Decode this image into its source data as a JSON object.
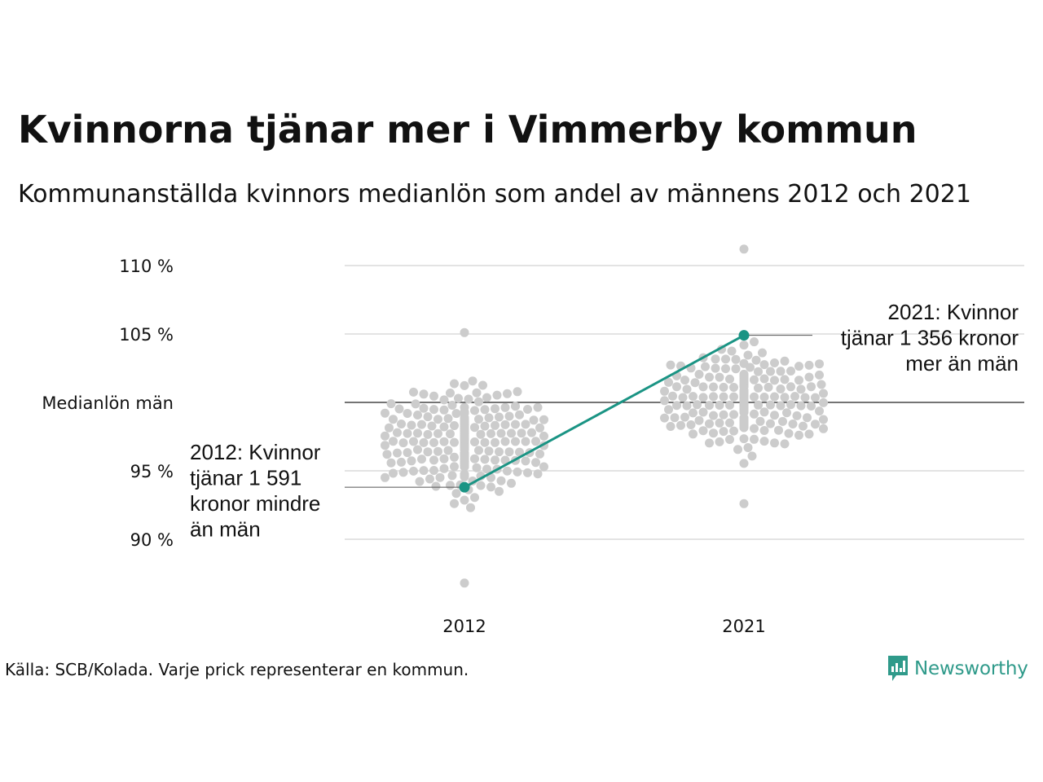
{
  "title": "Kvinnorna tjänar mer i Vimmerby kommun",
  "subtitle": "Kommunanställda kvinnors medianlön som andel av männens 2012 och 2021",
  "footer": {
    "source": "Källa: SCB/Kolada. Varje prick representerar en kommun.",
    "logo_text": "Newsworthy"
  },
  "colors": {
    "highlight": "#1a9484",
    "dots": "#cccccc",
    "grid": "#e3e3e3",
    "reference_line": "#222222",
    "logo": "#2f9a8a"
  },
  "chart_data": {
    "type": "scatter",
    "subtype": "beeswarm",
    "title": "Kvinnorna tjänar mer i Vimmerby kommun",
    "categories": [
      "2012",
      "2021"
    ],
    "ylim": [
      86.5,
      111.5
    ],
    "yticks": [
      {
        "value": 90,
        "label": "90 %"
      },
      {
        "value": 95,
        "label": "95 %"
      },
      {
        "value": 100,
        "label": "Medianlön män"
      },
      {
        "value": 105,
        "label": "105 %"
      },
      {
        "value": 110,
        "label": "110 %"
      }
    ],
    "grid": true,
    "reference_value": 100,
    "beeswarm": [
      {
        "category": "2012",
        "n": 290,
        "median": 97.1,
        "spread": 2.6,
        "min": 86.8,
        "max": 105.1
      },
      {
        "category": "2021",
        "n": 290,
        "median": 100.4,
        "spread": 2.3,
        "min": 92.6,
        "max": 111.2
      }
    ],
    "highlight": {
      "name": "Vimmerby",
      "points": [
        {
          "x": "2012",
          "y": 93.8
        },
        {
          "x": "2021",
          "y": 104.9
        }
      ]
    },
    "annotations": [
      {
        "x": "2012",
        "y": 93.8,
        "lines": [
          "2012: Kvinnor",
          "tjänar 1 591",
          "kronor mindre",
          "än män"
        ]
      },
      {
        "x": "2021",
        "y": 104.9,
        "lines": [
          "2021: Kvinnor",
          "tjänar 1 356 kronor",
          "mer än män"
        ]
      }
    ]
  }
}
